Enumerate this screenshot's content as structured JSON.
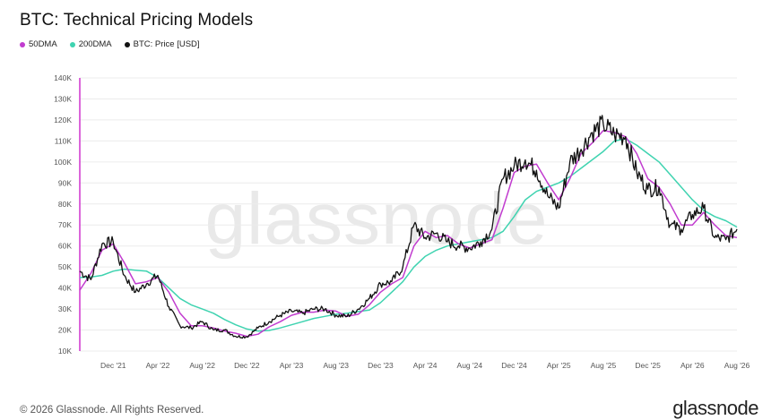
{
  "title": "BTC: Technical Pricing Models",
  "legend": [
    {
      "label": "50DMA",
      "color": "#c13ccf"
    },
    {
      "label": "200DMA",
      "color": "#3fd3b0"
    },
    {
      "label": "BTC: Price [USD]",
      "color": "#111111"
    }
  ],
  "watermark": "glassnode",
  "footer": {
    "copyright": "© 2026 Glassnode. All Rights Reserved.",
    "brand": "glassnode"
  },
  "chart_data": {
    "type": "line",
    "title": "BTC: Technical Pricing Models",
    "xlabel": "",
    "ylabel": "",
    "ylim": [
      10000,
      140000
    ],
    "yticks": [
      "10K",
      "20K",
      "30K",
      "40K",
      "50K",
      "60K",
      "70K",
      "80K",
      "90K",
      "100K",
      "110K",
      "120K",
      "130K",
      "140K"
    ],
    "xticks": [
      "Dec '21",
      "Apr '22",
      "Aug '22",
      "Dec '22",
      "Apr '23",
      "Aug '23",
      "Dec '23",
      "Apr '24",
      "Aug '24",
      "Dec '24",
      "Apr '25",
      "Aug '25",
      "Dec '25",
      "Apr '26",
      "Aug '26"
    ],
    "grid": true,
    "series": [
      {
        "name": "BTC: Price [USD]",
        "color": "#111111",
        "x": [
          "2021-09",
          "2021-10",
          "2021-11",
          "2021-12",
          "2022-01",
          "2022-02",
          "2022-03",
          "2022-04",
          "2022-05",
          "2022-06",
          "2022-07",
          "2022-08",
          "2022-09",
          "2022-10",
          "2022-11",
          "2022-12",
          "2023-01",
          "2023-02",
          "2023-03",
          "2023-04",
          "2023-05",
          "2023-06",
          "2023-07",
          "2023-08",
          "2023-09",
          "2023-10",
          "2023-11",
          "2023-12",
          "2024-01",
          "2024-02",
          "2024-03",
          "2024-04",
          "2024-05",
          "2024-06",
          "2024-07",
          "2024-08",
          "2024-09",
          "2024-10",
          "2024-11",
          "2024-12",
          "2025-01",
          "2025-02",
          "2025-03",
          "2025-04",
          "2025-05",
          "2025-06",
          "2025-07",
          "2025-08",
          "2025-09",
          "2025-10",
          "2025-11",
          "2025-12",
          "2026-01",
          "2026-02",
          "2026-03",
          "2026-04",
          "2026-05",
          "2026-06",
          "2026-07",
          "2026-08"
        ],
        "values": [
          48000,
          44000,
          61000,
          62000,
          46000,
          38000,
          42000,
          46000,
          31000,
          22000,
          21000,
          24000,
          20000,
          20000,
          17000,
          16800,
          21000,
          24000,
          27000,
          29000,
          28000,
          30000,
          30000,
          27000,
          26500,
          30000,
          35000,
          42000,
          43000,
          50000,
          70000,
          64000,
          66000,
          62000,
          60000,
          59000,
          62000,
          68000,
          92000,
          98000,
          101000,
          96000,
          84000,
          78000,
          100000,
          106000,
          114000,
          118000,
          113000,
          112000,
          95000,
          87000,
          88000,
          70000,
          68000,
          75000,
          78000,
          64000,
          63000,
          68000
        ]
      },
      {
        "name": "50DMA",
        "color": "#c13ccf",
        "x": [
          "2021-09",
          "2021-10",
          "2021-11",
          "2021-12",
          "2022-01",
          "2022-02",
          "2022-03",
          "2022-04",
          "2022-05",
          "2022-06",
          "2022-07",
          "2022-08",
          "2022-09",
          "2022-10",
          "2022-11",
          "2022-12",
          "2023-01",
          "2023-02",
          "2023-03",
          "2023-04",
          "2023-05",
          "2023-06",
          "2023-07",
          "2023-08",
          "2023-09",
          "2023-10",
          "2023-11",
          "2023-12",
          "2024-01",
          "2024-02",
          "2024-03",
          "2024-04",
          "2024-05",
          "2024-06",
          "2024-07",
          "2024-08",
          "2024-09",
          "2024-10",
          "2024-11",
          "2024-12",
          "2025-01",
          "2025-02",
          "2025-03",
          "2025-04",
          "2025-05",
          "2025-06",
          "2025-07",
          "2025-08",
          "2025-09",
          "2025-10",
          "2025-11",
          "2025-12",
          "2026-01",
          "2026-02",
          "2026-03",
          "2026-04",
          "2026-05",
          "2026-06",
          "2026-07",
          "2026-08"
        ],
        "values": [
          39000,
          47000,
          58000,
          61000,
          52000,
          42000,
          43000,
          45000,
          38000,
          28000,
          22000,
          22000,
          21000,
          19500,
          18500,
          17000,
          18000,
          21500,
          24000,
          27000,
          28500,
          28500,
          29500,
          29000,
          26500,
          27500,
          32000,
          38000,
          42000,
          45000,
          60000,
          67000,
          64000,
          65000,
          61000,
          59000,
          61000,
          63000,
          78000,
          95000,
          98000,
          99000,
          90000,
          82000,
          92000,
          104000,
          109000,
          115000,
          114000,
          112000,
          104000,
          92000,
          88000,
          80000,
          70000,
          70000,
          76000,
          70000,
          65000,
          64000
        ]
      },
      {
        "name": "200DMA",
        "color": "#3fd3b0",
        "x": [
          "2021-09",
          "2021-10",
          "2021-11",
          "2021-12",
          "2022-01",
          "2022-02",
          "2022-03",
          "2022-04",
          "2022-05",
          "2022-06",
          "2022-07",
          "2022-08",
          "2022-09",
          "2022-10",
          "2022-11",
          "2022-12",
          "2023-01",
          "2023-02",
          "2023-03",
          "2023-04",
          "2023-05",
          "2023-06",
          "2023-07",
          "2023-08",
          "2023-09",
          "2023-10",
          "2023-11",
          "2023-12",
          "2024-01",
          "2024-02",
          "2024-03",
          "2024-04",
          "2024-05",
          "2024-06",
          "2024-07",
          "2024-08",
          "2024-09",
          "2024-10",
          "2024-11",
          "2024-12",
          "2025-01",
          "2025-02",
          "2025-03",
          "2025-04",
          "2025-05",
          "2025-06",
          "2025-07",
          "2025-08",
          "2025-09",
          "2025-10",
          "2025-11",
          "2025-12",
          "2026-01",
          "2026-02",
          "2026-03",
          "2026-04",
          "2026-05",
          "2026-06",
          "2026-07",
          "2026-08"
        ],
        "values": [
          45000,
          45200,
          46000,
          48000,
          49000,
          48500,
          48000,
          45000,
          40000,
          35000,
          32000,
          30000,
          28000,
          25000,
          22500,
          20500,
          19500,
          19800,
          21000,
          22500,
          24000,
          25500,
          26500,
          27500,
          28000,
          28800,
          29500,
          33000,
          38000,
          43000,
          50000,
          55000,
          58000,
          60000,
          61000,
          62000,
          63000,
          64000,
          67000,
          74000,
          82000,
          86000,
          88000,
          90000,
          93000,
          97000,
          101000,
          105000,
          110000,
          111000,
          108000,
          104000,
          100000,
          94000,
          88000,
          82000,
          77000,
          74000,
          72000,
          69000
        ]
      }
    ]
  }
}
